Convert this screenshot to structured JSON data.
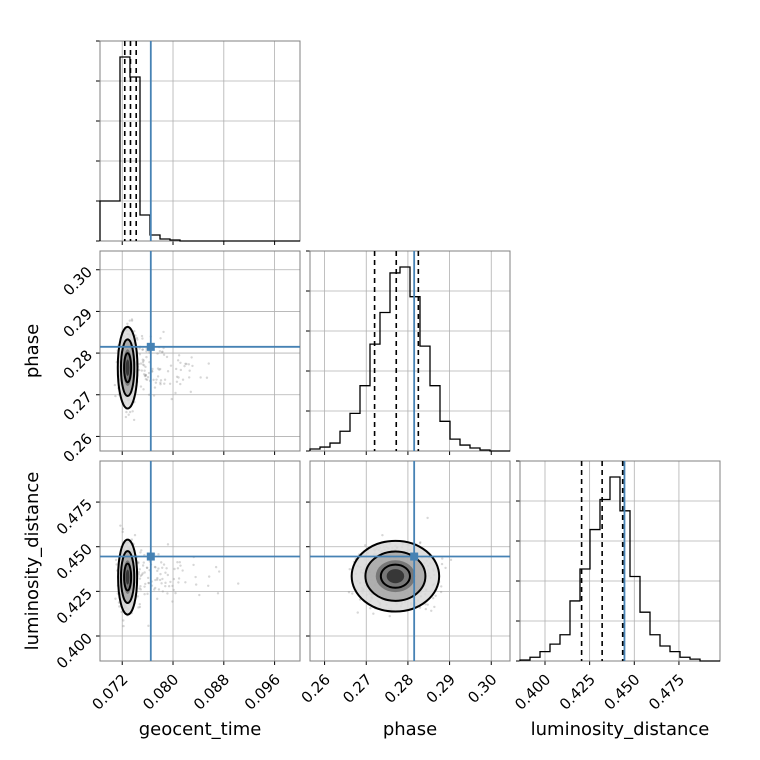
{
  "chart_data": {
    "type": "corner",
    "parameters": [
      "geocent_time",
      "phase",
      "luminosity_distance"
    ],
    "ranges": {
      "geocent_time": [
        0.0685,
        0.1
      ],
      "phase": [
        0.2565,
        0.3045
      ],
      "luminosity_distance": [
        0.386,
        0.498
      ]
    },
    "ticks": {
      "geocent_time": [
        0.072,
        0.08,
        0.088,
        0.096
      ],
      "phase": [
        0.26,
        0.27,
        0.28,
        0.29,
        0.3
      ],
      "luminosity_distance": [
        0.4,
        0.425,
        0.45,
        0.475
      ]
    },
    "tick_labels": {
      "geocent_time": [
        "0.072",
        "0.080",
        "0.088",
        "0.096"
      ],
      "phase": [
        "0.26",
        "0.27",
        "0.28",
        "0.29",
        "0.30"
      ],
      "luminosity_distance": [
        "0.400",
        "0.425",
        "0.450",
        "0.475"
      ]
    },
    "truths": {
      "geocent_time": 0.0765,
      "phase": 0.2815,
      "luminosity_distance": 0.4445
    },
    "quantiles": {
      "geocent_time": [
        0.0724,
        0.0733,
        0.0742
      ],
      "phase": [
        0.272,
        0.2772,
        0.2825
      ],
      "luminosity_distance": [
        0.4205,
        0.432,
        0.4435
      ]
    },
    "histograms": {
      "geocent_time": {
        "edges": [
          0.0685,
          0.07007,
          0.07165,
          0.07322,
          0.0748,
          0.07637,
          0.07795,
          0.07952,
          0.0811,
          0.08267,
          0.08425,
          0.08582,
          0.0874,
          0.08897,
          0.09055,
          0.09212,
          0.0937,
          0.09527,
          0.09685,
          0.09842,
          0.1
        ],
        "values": [
          0.2,
          0.2,
          0.92,
          0.82,
          0.13,
          0.03,
          0.01,
          0.005,
          0,
          0,
          0,
          0,
          0,
          0,
          0,
          0,
          0,
          0,
          0,
          0
        ]
      },
      "phase": {
        "edges": [
          0.2565,
          0.2589,
          0.2613,
          0.2637,
          0.2661,
          0.2685,
          0.2709,
          0.2733,
          0.2757,
          0.2781,
          0.2805,
          0.2829,
          0.2853,
          0.2877,
          0.2901,
          0.2925,
          0.2949,
          0.2973,
          0.2997,
          0.3021,
          0.3045
        ],
        "values": [
          0.01,
          0.02,
          0.04,
          0.1,
          0.19,
          0.33,
          0.54,
          0.7,
          0.9,
          0.93,
          0.78,
          0.53,
          0.33,
          0.15,
          0.06,
          0.03,
          0.015,
          0.005,
          0,
          0
        ]
      },
      "luminosity_distance": {
        "edges": [
          0.386,
          0.3916,
          0.3972,
          0.4028,
          0.4084,
          0.414,
          0.4196,
          0.4252,
          0.4308,
          0.4364,
          0.442,
          0.4476,
          0.4532,
          0.4588,
          0.4644,
          0.47,
          0.4756,
          0.4812,
          0.4868,
          0.4924,
          0.498
        ],
        "values": [
          0.005,
          0.02,
          0.05,
          0.09,
          0.14,
          0.32,
          0.49,
          0.7,
          0.86,
          0.98,
          0.8,
          0.45,
          0.26,
          0.14,
          0.08,
          0.05,
          0.02,
          0.01,
          0,
          0
        ]
      }
    },
    "pairs": [
      {
        "x": "geocent_time",
        "y": "phase",
        "center": [
          0.07285,
          0.2765
        ],
        "contours": [
          {
            "level": 0.39,
            "rx": 0.00055,
            "ry": 0.0035
          },
          {
            "level": 0.86,
            "rx": 0.00105,
            "ry": 0.0068
          },
          {
            "level": 0.99,
            "rx": 0.00155,
            "ry": 0.0098
          }
        ]
      },
      {
        "x": "geocent_time",
        "y": "luminosity_distance",
        "center": [
          0.07285,
          0.433
        ],
        "contours": [
          {
            "level": 0.39,
            "rx": 0.00055,
            "ry": 0.0075
          },
          {
            "level": 0.86,
            "rx": 0.00105,
            "ry": 0.0145
          },
          {
            "level": 0.99,
            "rx": 0.0015,
            "ry": 0.021
          }
        ]
      },
      {
        "x": "phase",
        "y": "luminosity_distance",
        "center": [
          0.277,
          0.4335
        ],
        "contours": [
          {
            "level": 0.39,
            "rx": 0.0035,
            "ry": 0.0065
          },
          {
            "level": 0.86,
            "rx": 0.0072,
            "ry": 0.0138
          },
          {
            "level": 0.99,
            "rx": 0.0105,
            "ry": 0.0198
          }
        ]
      }
    ],
    "grid": true
  }
}
